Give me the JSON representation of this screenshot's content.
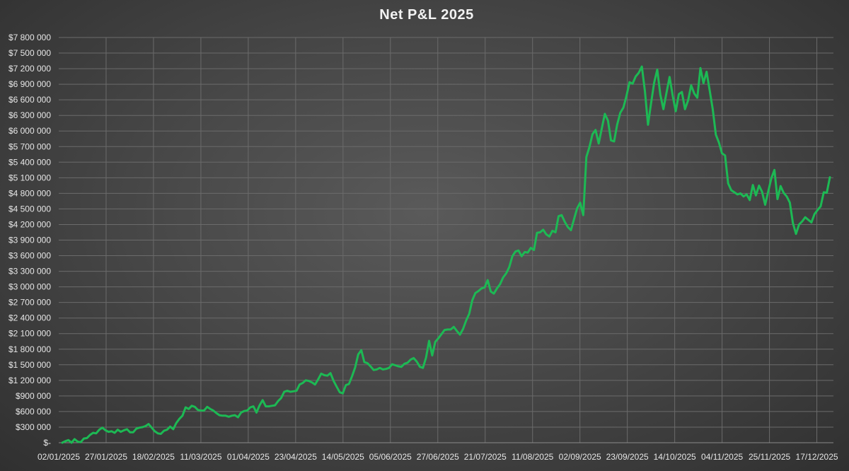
{
  "chart_data": {
    "type": "line",
    "title": "Net P&L 2025",
    "xlabel": "",
    "ylabel": "",
    "x_tick_labels": [
      "02/01/2025",
      "27/01/2025",
      "18/02/2025",
      "11/03/2025",
      "01/04/2025",
      "23/04/2025",
      "14/05/2025",
      "05/06/2025",
      "27/06/2025",
      "21/07/2025",
      "11/08/2025",
      "02/09/2025",
      "23/09/2025",
      "14/10/2025",
      "04/11/2025",
      "25/11/2025",
      "17/12/2025"
    ],
    "y_tick_labels": [
      "$-",
      "$300 000",
      "$600 000",
      "$900 000",
      "$1 200 000",
      "$1 500 000",
      "$1 800 000",
      "$2 100 000",
      "$2 400 000",
      "$2 700 000",
      "$3 000 000",
      "$3 300 000",
      "$3 600 000",
      "$3 900 000",
      "$4 200 000",
      "$4 500 000",
      "$4 800 000",
      "$5 100 000",
      "$5 400 000",
      "$5 700 000",
      "$6 000 000",
      "$6 300 000",
      "$6 600 000",
      "$6 900 000",
      "$7 200 000",
      "$7 500 000",
      "$7 800 000"
    ],
    "ylim": [
      0,
      7800000
    ],
    "grid": true,
    "series_color": "#1db954",
    "x_unit": "trading days",
    "series": [
      {
        "values": [
          0,
          30000,
          50000,
          0,
          70000,
          20000,
          10000,
          80000,
          90000,
          150000,
          190000,
          180000,
          250000,
          290000,
          240000,
          210000,
          220000,
          190000,
          250000,
          210000,
          240000,
          260000,
          200000,
          200000,
          270000,
          290000,
          300000,
          320000,
          360000,
          290000,
          220000,
          180000,
          170000,
          230000,
          250000,
          310000,
          260000,
          380000,
          460000,
          520000,
          680000,
          650000,
          710000,
          690000,
          630000,
          620000,
          620000,
          690000,
          650000,
          620000,
          570000,
          530000,
          520000,
          520000,
          500000,
          520000,
          530000,
          490000,
          580000,
          610000,
          620000,
          680000,
          700000,
          580000,
          720000,
          820000,
          700000,
          700000,
          710000,
          720000,
          800000,
          860000,
          980000,
          1000000,
          980000,
          990000,
          1000000,
          1120000,
          1150000,
          1200000,
          1190000,
          1160000,
          1120000,
          1220000,
          1330000,
          1300000,
          1290000,
          1340000,
          1190000,
          1080000,
          970000,
          950000,
          1110000,
          1130000,
          1280000,
          1450000,
          1700000,
          1780000,
          1550000,
          1530000,
          1470000,
          1400000,
          1410000,
          1440000,
          1410000,
          1420000,
          1440000,
          1510000,
          1490000,
          1470000,
          1460000,
          1520000,
          1540000,
          1600000,
          1630000,
          1560000,
          1460000,
          1440000,
          1640000,
          1960000,
          1680000,
          1940000,
          2010000,
          2090000,
          2170000,
          2180000,
          2180000,
          2230000,
          2150000,
          2080000,
          2190000,
          2350000,
          2480000,
          2740000,
          2880000,
          2920000,
          2970000,
          2990000,
          3130000,
          2910000,
          2870000,
          2970000,
          3050000,
          3180000,
          3260000,
          3380000,
          3590000,
          3680000,
          3700000,
          3590000,
          3670000,
          3660000,
          3750000,
          3710000,
          4040000,
          4050000,
          4100000,
          4010000,
          3970000,
          4080000,
          4050000,
          4360000,
          4380000,
          4250000,
          4150000,
          4090000,
          4300000,
          4510000,
          4620000,
          4380000,
          5500000,
          5690000,
          5940000,
          6020000,
          5760000,
          6050000,
          6330000,
          6200000,
          5820000,
          5800000,
          6120000,
          6350000,
          6450000,
          6670000,
          6940000,
          6910000,
          7050000,
          7120000,
          7240000,
          6760000,
          6120000,
          6540000,
          6930000,
          7180000,
          6700000,
          6420000,
          6740000,
          7040000,
          6680000,
          6380000,
          6710000,
          6750000,
          6420000,
          6590000,
          6880000,
          6720000,
          6640000,
          7210000,
          6920000,
          7140000,
          6780000,
          6420000,
          5930000,
          5780000,
          5570000,
          5530000,
          4990000,
          4860000,
          4820000,
          4780000,
          4800000,
          4740000,
          4780000,
          4670000,
          4960000,
          4760000,
          4950000,
          4830000,
          4580000,
          4840000,
          5090000,
          5250000,
          4690000,
          4940000,
          4810000,
          4740000,
          4620000,
          4230000,
          4020000,
          4200000,
          4260000,
          4340000,
          4290000,
          4240000,
          4400000,
          4480000,
          4550000,
          4820000,
          4810000,
          5110000
        ]
      }
    ]
  }
}
